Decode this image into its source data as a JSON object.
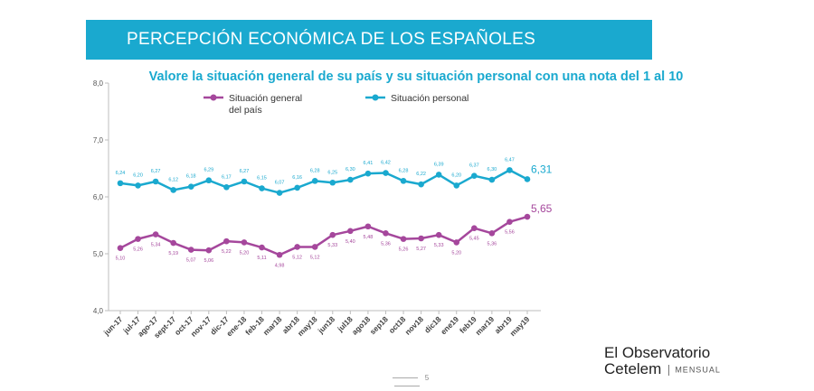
{
  "banner": {
    "title": "PERCEPCIÓN  ECONÓMICA DE LOS ESPAÑOLES"
  },
  "chart_data": {
    "type": "line",
    "title": "Valore la situación general de su país y su situación personal con una nota del 1 al  10",
    "categories": [
      "jun-17",
      "jul-17",
      "ago-17",
      "sept-17",
      "oct-17",
      "nov-17",
      "dic-17",
      "ene-18",
      "feb-18",
      "mar18",
      "abr18",
      "may18",
      "jun18",
      "jul18",
      "ago18",
      "sep18",
      "oct18",
      "nov18",
      "dic18",
      "ene19",
      "feb19",
      "mar19",
      "abr19",
      "may19"
    ],
    "ylim": [
      4.0,
      8.0
    ],
    "yticks": [
      "8,0",
      "7,0",
      "6,0",
      "5,0",
      "4,0"
    ],
    "series": [
      {
        "name": "Situación personal",
        "color": "#1aa9cf",
        "values": [
          6.24,
          6.2,
          6.27,
          6.12,
          6.18,
          6.29,
          6.17,
          6.27,
          6.15,
          6.07,
          6.16,
          6.28,
          6.25,
          6.3,
          6.41,
          6.42,
          6.28,
          6.22,
          6.39,
          6.2,
          6.37,
          6.3,
          6.47,
          6.31
        ],
        "labels": [
          "6,24",
          "6,20",
          "6,27",
          "6,12",
          "6,18",
          "6,29",
          "6,17",
          "6,27",
          "6,15",
          "6,07",
          "6,16",
          "6,28",
          "6,25",
          "6,30",
          "6,41",
          "6,42",
          "6,28",
          "6,22",
          "6,39",
          "6,20",
          "6,37",
          "6,30",
          "6,47",
          "6,31"
        ]
      },
      {
        "name": "Situación general del país",
        "color": "#a5479c",
        "values": [
          5.1,
          5.26,
          5.34,
          5.19,
          5.07,
          5.06,
          5.22,
          5.2,
          5.11,
          4.98,
          5.12,
          5.12,
          5.33,
          5.4,
          5.48,
          5.36,
          5.26,
          5.27,
          5.33,
          5.2,
          5.45,
          5.36,
          5.56,
          5.65
        ],
        "labels": [
          "5,10",
          "5,26",
          "5,34",
          "5,19",
          "5,07",
          "5,06",
          "5,22",
          "5,20",
          "5,11",
          "4,98",
          "5,12",
          "5,12",
          "5,33",
          "5,40",
          "5,48",
          "5,36",
          "5,26",
          "5,27",
          "5,33",
          "5,20",
          "5,45",
          "5,36",
          "5,56",
          "5,65"
        ]
      }
    ],
    "legend": {
      "general_line1": "Situación general",
      "general_line2": "del país",
      "personal": "Situación personal"
    }
  },
  "brand": {
    "line1": "El Observatorio",
    "line2": "Cetelem",
    "sub": "MENSUAL"
  },
  "page": {
    "number": "5"
  }
}
